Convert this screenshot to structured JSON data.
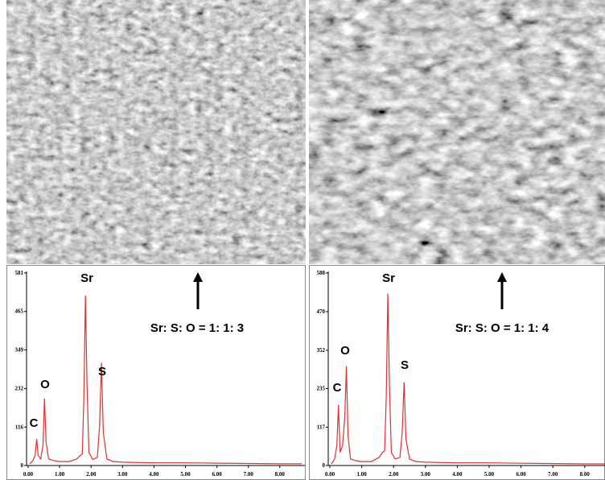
{
  "chart_data": [
    {
      "type": "line",
      "color": "#e03030",
      "x": [
        0.05,
        0.15,
        0.22,
        0.27,
        0.32,
        0.4,
        0.47,
        0.52,
        0.57,
        0.65,
        0.8,
        1.0,
        1.3,
        1.55,
        1.65,
        1.72,
        1.77,
        1.82,
        1.87,
        1.93,
        2.05,
        2.2,
        2.27,
        2.33,
        2.39,
        2.5,
        2.7,
        3.0,
        4.0,
        5.0,
        6.0,
        7.0,
        8.0,
        8.7
      ],
      "values": [
        5,
        15,
        30,
        80,
        30,
        20,
        60,
        202,
        70,
        20,
        15,
        12,
        12,
        20,
        30,
        35,
        200,
        513,
        250,
        40,
        18,
        25,
        120,
        310,
        100,
        20,
        12,
        10,
        8,
        8,
        7,
        6,
        5,
        5
      ],
      "xlim": [
        0,
        8.8
      ],
      "ylim": [
        0,
        581
      ],
      "xticks": [
        {
          "value": 0,
          "label": "0.00"
        },
        {
          "value": 1,
          "label": "1.00"
        },
        {
          "value": 2,
          "label": "2.00"
        },
        {
          "value": 3,
          "label": "3.00"
        },
        {
          "value": 4,
          "label": "4.00"
        },
        {
          "value": 5,
          "label": "5.00"
        },
        {
          "value": 6,
          "label": "6.00"
        },
        {
          "value": 7,
          "label": "7.00"
        },
        {
          "value": 8,
          "label": "8.00"
        }
      ],
      "yticks": [
        0,
        116,
        232,
        349,
        465,
        581
      ],
      "annotations": [
        "C",
        "O",
        "Sr",
        "S",
        "Sr: S: O = 1: 1: 3"
      ]
    },
    {
      "type": "line",
      "color": "#e03030",
      "x": [
        0.05,
        0.15,
        0.22,
        0.27,
        0.32,
        0.4,
        0.47,
        0.52,
        0.57,
        0.65,
        0.8,
        1.0,
        1.3,
        1.55,
        1.65,
        1.72,
        1.77,
        1.82,
        1.87,
        1.93,
        2.05,
        2.2,
        2.27,
        2.33,
        2.39,
        2.5,
        2.7,
        3.0,
        4.0,
        5.0,
        6.0,
        7.0,
        8.0,
        8.7
      ],
      "values": [
        5,
        20,
        60,
        185,
        40,
        60,
        150,
        303,
        90,
        20,
        15,
        12,
        12,
        25,
        40,
        45,
        210,
        525,
        240,
        40,
        20,
        25,
        100,
        254,
        80,
        20,
        12,
        10,
        8,
        8,
        7,
        6,
        5,
        5
      ],
      "xlim": [
        0,
        8.7
      ],
      "ylim": [
        0,
        588
      ],
      "xticks": [
        {
          "value": 0,
          "label": "0.00"
        },
        {
          "value": 1,
          "label": "1.00"
        },
        {
          "value": 2,
          "label": "2.00"
        },
        {
          "value": 3,
          "label": "3.00"
        },
        {
          "value": 4,
          "label": "4.00"
        },
        {
          "value": 5,
          "label": "5.00"
        },
        {
          "value": 6,
          "label": "6.00"
        },
        {
          "value": 7,
          "label": "7.00"
        },
        {
          "value": 8,
          "label": "8.00"
        }
      ],
      "yticks": [
        0,
        117,
        235,
        352,
        470,
        588
      ],
      "annotations": [
        "C",
        "O",
        "Sr",
        "S",
        "Sr: S: O = 1: 1: 4"
      ]
    }
  ]
}
